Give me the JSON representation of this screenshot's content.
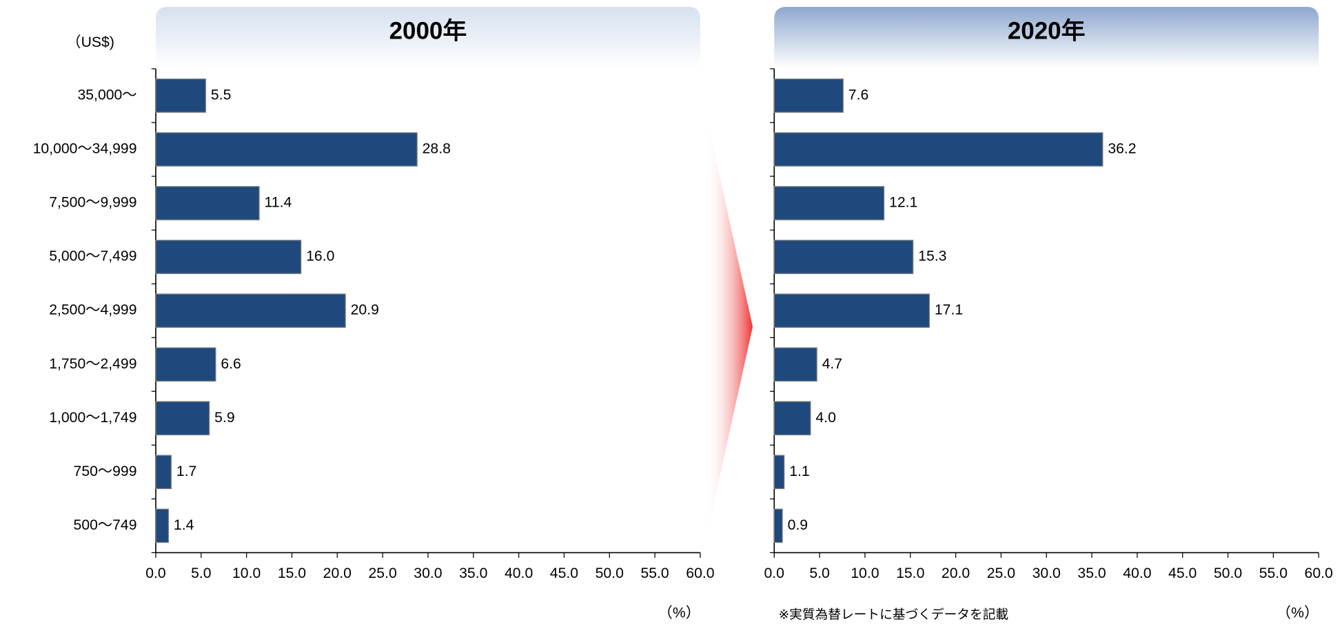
{
  "chart_data": [
    {
      "type": "bar",
      "orientation": "horizontal",
      "title": "2000年",
      "y_label": "（US$)",
      "x_label": "（%）",
      "categories": [
        "35,000～",
        "10,000～34,999",
        "7,500～9,999",
        "5,000～7,499",
        "2,500～4,999",
        "1,750～2,499",
        "1,000～1,749",
        "750～999",
        "500～749"
      ],
      "values": [
        5.5,
        28.8,
        11.4,
        16.0,
        20.9,
        6.6,
        5.9,
        1.7,
        1.4
      ],
      "value_labels": [
        "5.5",
        "28.8",
        "11.4",
        "16.0",
        "20.9",
        "6.6",
        "5.9",
        "1.7",
        "1.4"
      ],
      "color": "#1f497d",
      "header_color": "#d6e0ef",
      "xlim": [
        0,
        60
      ],
      "xticks": [
        {
          "value": 0,
          "label": "0.0"
        },
        {
          "value": 5,
          "label": "5.0"
        },
        {
          "value": 10,
          "label": "10.0"
        },
        {
          "value": 15,
          "label": "15.0"
        },
        {
          "value": 20,
          "label": "20.0"
        },
        {
          "value": 25,
          "label": "25.0"
        },
        {
          "value": 30,
          "label": "30.0"
        },
        {
          "value": 35,
          "label": "35.0"
        },
        {
          "value": 40,
          "label": "40.0"
        },
        {
          "value": 45,
          "label": "45.0"
        },
        {
          "value": 50,
          "label": "50.0"
        },
        {
          "value": 55,
          "label": "55.0"
        },
        {
          "value": 60,
          "label": "60.0"
        }
      ]
    },
    {
      "type": "bar",
      "orientation": "horizontal",
      "title": "2020年",
      "x_label": "（%）",
      "note": "※実質為替レートに基づくデータを記載",
      "values": [
        7.6,
        36.2,
        12.1,
        15.3,
        17.1,
        4.7,
        4.0,
        1.1,
        0.9
      ],
      "value_labels": [
        "7.6",
        "36.2",
        "12.1",
        "15.3",
        "17.1",
        "4.7",
        "4.0",
        "1.1",
        "0.9"
      ],
      "color": "#1f497d",
      "header_color": "#8ea8cf",
      "xlim": [
        0,
        60
      ],
      "xticks": [
        {
          "value": 0,
          "label": "0.0"
        },
        {
          "value": 5,
          "label": "5.0"
        },
        {
          "value": 10,
          "label": "10.0"
        },
        {
          "value": 15,
          "label": "15.0"
        },
        {
          "value": 20,
          "label": "20.0"
        },
        {
          "value": 25,
          "label": "25.0"
        },
        {
          "value": 30,
          "label": "30.0"
        },
        {
          "value": 35,
          "label": "35.0"
        },
        {
          "value": 40,
          "label": "40.0"
        },
        {
          "value": 45,
          "label": "45.0"
        },
        {
          "value": 50,
          "label": "50.0"
        },
        {
          "value": 55,
          "label": "55.0"
        },
        {
          "value": 60,
          "label": "60.0"
        }
      ]
    }
  ]
}
